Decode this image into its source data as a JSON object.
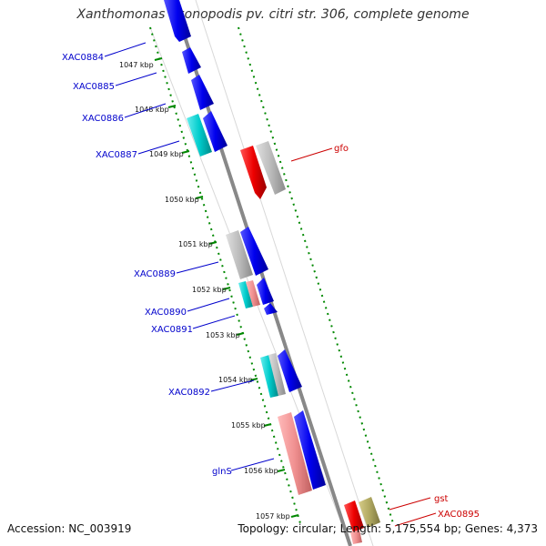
{
  "title": "Xanthomonas axonopodis pv. citri str. 306, complete genome",
  "footer": {
    "accession": "Accession: NC_003919",
    "summary": "Topology: circular; Length: 5,175,554 bp; Genes: 4,373"
  },
  "kbp_labels": [
    "1047 kbp",
    "1048 kbp",
    "1049 kbp",
    "1050 kbp",
    "1051 kbp",
    "1052 kbp",
    "1053 kbp",
    "1054 kbp",
    "1055 kbp",
    "1056 kbp",
    "1057 kbp"
  ],
  "gene_labels": [
    "XAC0884",
    "XAC0885",
    "XAC0886",
    "XAC0887",
    "XAC0889",
    "XAC0890",
    "XAC0891",
    "XAC0892",
    "glnS",
    "gfo",
    "gst",
    "XAC0895"
  ],
  "colors": {
    "blue_gene": "#0000ee",
    "cyan_gene": "#00cccc",
    "gray_gene": "#b8b8b8",
    "pink_gene": "#f09090",
    "red_gene": "#ee0000",
    "olive_gene": "#b0a860",
    "backbone": "#888888",
    "tick": "#008800"
  }
}
